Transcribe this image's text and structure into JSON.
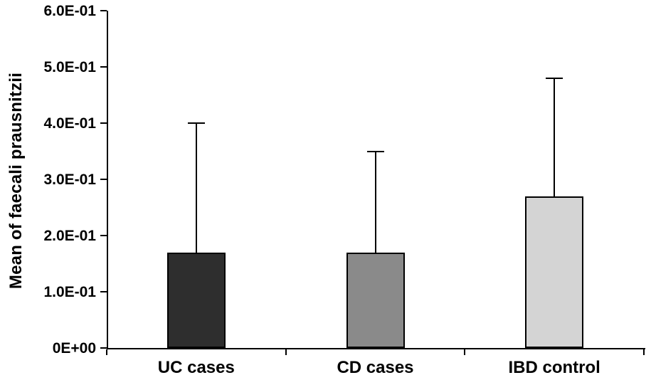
{
  "chart_data": {
    "type": "bar",
    "title": "",
    "xlabel": "",
    "ylabel": "Mean of faecali prausnitzii",
    "categories": [
      "UC cases",
      "CD cases",
      "IBD control"
    ],
    "values": [
      0.17,
      0.17,
      0.27
    ],
    "error_upper": [
      0.23,
      0.18,
      0.21
    ],
    "ylim": [
      0,
      0.6
    ],
    "yticks": [
      {
        "value": 0.0,
        "label": "0E+00"
      },
      {
        "value": 0.1,
        "label": "1.0E-01"
      },
      {
        "value": 0.2,
        "label": "2.0E-01"
      },
      {
        "value": 0.3,
        "label": "3.0E-01"
      },
      {
        "value": 0.4,
        "label": "4.0E-01"
      },
      {
        "value": 0.5,
        "label": "5.0E-01"
      },
      {
        "value": 0.6,
        "label": "6.0E-01"
      }
    ],
    "bar_colors": [
      "#2e2e2e",
      "#8a8a8a",
      "#d4d4d4"
    ],
    "bar_border_color": "#000000",
    "grid": false,
    "legend": false
  }
}
